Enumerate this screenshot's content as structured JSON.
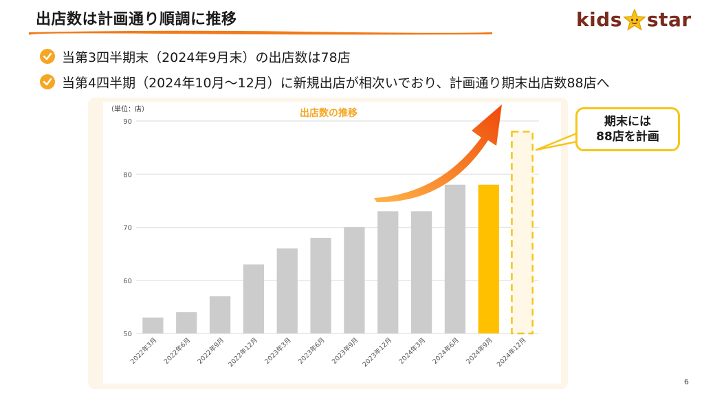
{
  "slide": {
    "title": "出店数は計画通り順調に推移",
    "page_number": "6"
  },
  "logo": {
    "text_left": "kids",
    "text_right": "star"
  },
  "bullets": [
    {
      "text": "当第3四半期末（2024年9月末）の出店数は78店"
    },
    {
      "text": "当第4四半期（2024年10月～12月）に新規出店が相次いでおり、計画通り期末出店数88店へ"
    }
  ],
  "callout": {
    "line1": "期末には",
    "line2": "88店を計画"
  },
  "colors": {
    "accent_orange": "#f07b1a",
    "bar_gray": "#cccccc",
    "bar_current": "#ffc000",
    "bar_plan_border": "#f5c518",
    "bar_plan_fill": "#fff8e6",
    "title_color": "#f5a623"
  },
  "chart_data": {
    "type": "bar",
    "title": "出店数の推移",
    "unit_label": "（単位：店）",
    "categories": [
      "2022年3月",
      "2022年6月",
      "2022年9月",
      "2022年12月",
      "2023年3月",
      "2023年6月",
      "2023年9月",
      "2023年12月",
      "2024年3月",
      "2024年6月",
      "2024年9月",
      "2024年12月"
    ],
    "values": [
      53,
      54,
      57,
      63,
      66,
      68,
      70,
      73,
      73,
      78,
      78,
      88
    ],
    "bar_styles": [
      "actual",
      "actual",
      "actual",
      "actual",
      "actual",
      "actual",
      "actual",
      "actual",
      "actual",
      "actual",
      "current",
      "plan"
    ],
    "ylim": [
      50,
      90
    ],
    "yticks": [
      50,
      60,
      70,
      80,
      90
    ],
    "grid": true,
    "annotation": "upward-arrow"
  }
}
